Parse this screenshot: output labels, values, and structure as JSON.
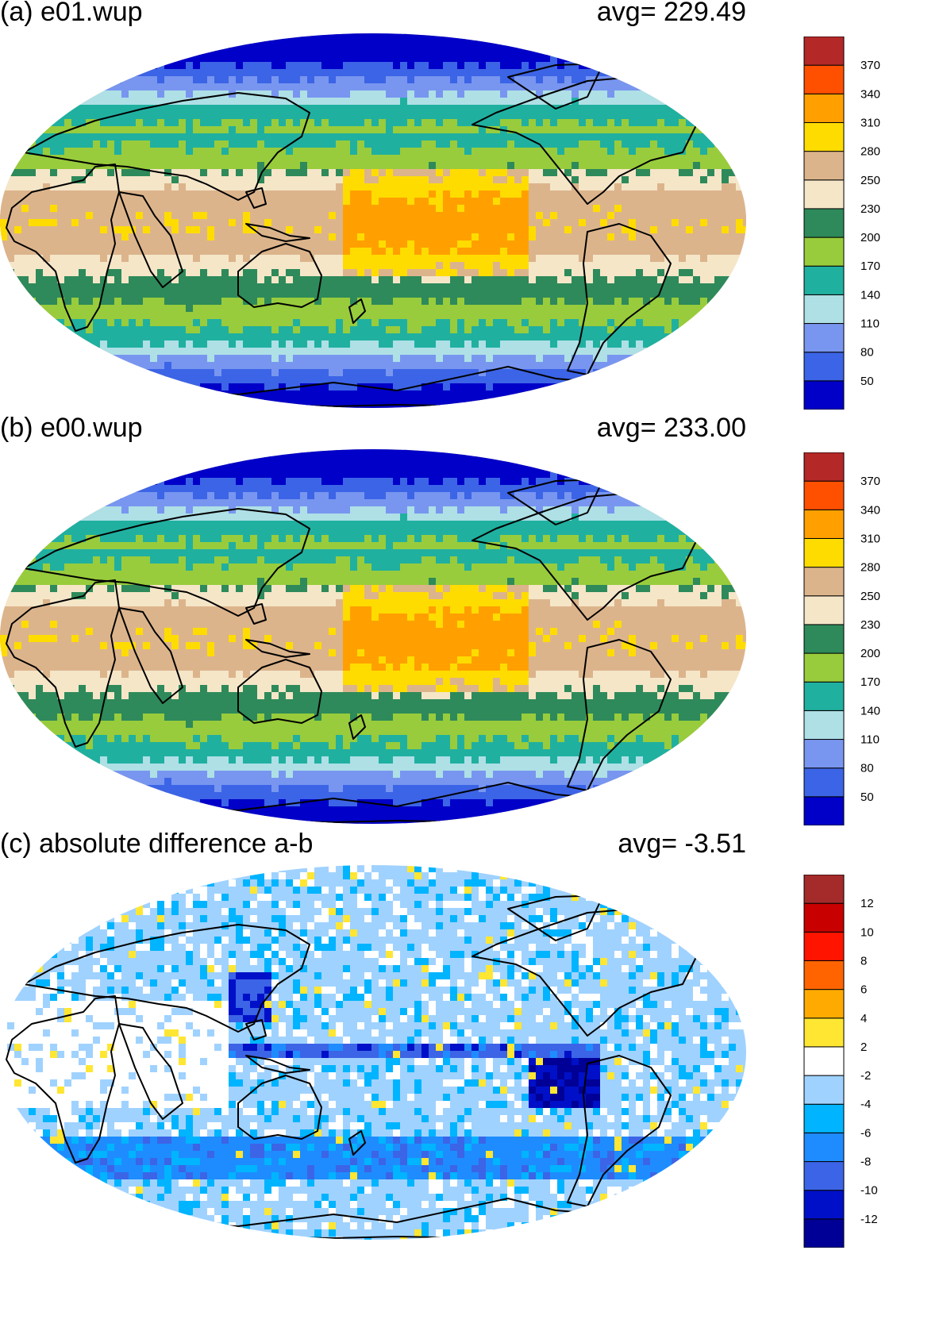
{
  "panels": [
    {
      "id": "a",
      "title": "(a) e01.wup",
      "avg_label": "avg=  229.49",
      "field": "abs",
      "colorbar": {
        "colors": [
          "#0000c8",
          "#3c64e6",
          "#7896f0",
          "#aee0e6",
          "#20b0a0",
          "#98cc3c",
          "#2e8a5a",
          "#f5e6c8",
          "#dcb48c",
          "#ffdc00",
          "#ffa000",
          "#ff5000",
          "#b42828"
        ],
        "labels": [
          "50",
          "80",
          "110",
          "140",
          "170",
          "200",
          "230",
          "250",
          "280",
          "310",
          "340",
          "370"
        ]
      }
    },
    {
      "id": "b",
      "title": "(b) e00.wup",
      "avg_label": "avg=  233.00",
      "field": "abs",
      "colorbar": {
        "colors": [
          "#0000c8",
          "#3c64e6",
          "#7896f0",
          "#aee0e6",
          "#20b0a0",
          "#98cc3c",
          "#2e8a5a",
          "#f5e6c8",
          "#dcb48c",
          "#ffdc00",
          "#ffa000",
          "#ff5000",
          "#b42828"
        ],
        "labels": [
          "50",
          "80",
          "110",
          "140",
          "170",
          "200",
          "230",
          "250",
          "280",
          "310",
          "340",
          "370"
        ]
      }
    },
    {
      "id": "c",
      "title": "(c) absolute difference a-b",
      "avg_label": "avg=   -3.51",
      "field": "diff",
      "colorbar": {
        "colors": [
          "#000096",
          "#0010c8",
          "#3c64e6",
          "#1e8cff",
          "#00b4ff",
          "#a0d2ff",
          "#ffffff",
          "#ffe632",
          "#ffaa00",
          "#ff6400",
          "#ff1400",
          "#c80000",
          "#a52a2a"
        ],
        "labels": [
          "-12",
          "-10",
          "-8",
          "-6",
          "-4",
          "-2",
          "2",
          "4",
          "6",
          "8",
          "10",
          "12"
        ]
      }
    }
  ]
}
